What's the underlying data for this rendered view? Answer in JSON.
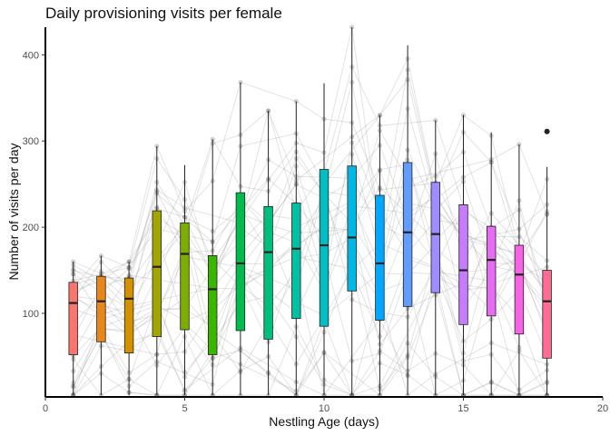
{
  "chart_data": {
    "type": "boxplot",
    "title": "Daily provisioning visits per female",
    "xlabel": "Nestling Age (days)",
    "ylabel": "Number of visits per day",
    "xlim": [
      0,
      20
    ],
    "ylim": [
      3,
      432
    ],
    "x_ticks": [
      0,
      5,
      10,
      15,
      20
    ],
    "y_ticks": [
      100,
      200,
      300,
      400
    ],
    "grid": false,
    "legend": "none",
    "boxes": [
      {
        "age": 1,
        "min": 5,
        "q1": 52,
        "median": 112,
        "q3": 136,
        "max": 160,
        "color": "#F8766D"
      },
      {
        "age": 2,
        "min": 5,
        "q1": 67,
        "median": 114,
        "q3": 143,
        "max": 167,
        "color": "#E8861A"
      },
      {
        "age": 3,
        "min": 5,
        "q1": 54,
        "median": 117,
        "q3": 141,
        "max": 160,
        "color": "#D39200"
      },
      {
        "age": 4,
        "min": 5,
        "q1": 73,
        "median": 154,
        "q3": 219,
        "max": 294,
        "color": "#A3A500"
      },
      {
        "age": 5,
        "min": 5,
        "q1": 81,
        "median": 169,
        "q3": 205,
        "max": 272,
        "color": "#7CAE00"
      },
      {
        "age": 6,
        "min": 5,
        "q1": 52,
        "median": 128,
        "q3": 167,
        "max": 302,
        "color": "#39B600"
      },
      {
        "age": 7,
        "min": 5,
        "q1": 80,
        "median": 158,
        "q3": 240,
        "max": 368,
        "color": "#00BB4E"
      },
      {
        "age": 8,
        "min": 5,
        "q1": 70,
        "median": 171,
        "q3": 224,
        "max": 335,
        "color": "#00BF7D"
      },
      {
        "age": 9,
        "min": 5,
        "q1": 94,
        "median": 175,
        "q3": 228,
        "max": 346,
        "color": "#00C1A3"
      },
      {
        "age": 10,
        "min": 5,
        "q1": 85,
        "median": 179,
        "q3": 267,
        "max": 367,
        "color": "#00BFC4"
      },
      {
        "age": 11,
        "min": 5,
        "q1": 126,
        "median": 188,
        "q3": 271,
        "max": 432,
        "color": "#00B8E7"
      },
      {
        "age": 12,
        "min": 5,
        "q1": 92,
        "median": 158,
        "q3": 237,
        "max": 330,
        "color": "#00A9FF"
      },
      {
        "age": 13,
        "min": 5,
        "q1": 108,
        "median": 194,
        "q3": 275,
        "max": 411,
        "color": "#619CFF"
      },
      {
        "age": 14,
        "min": 5,
        "q1": 124,
        "median": 192,
        "q3": 252,
        "max": 324,
        "color": "#9F8CFF"
      },
      {
        "age": 15,
        "min": 5,
        "q1": 87,
        "median": 150,
        "q3": 226,
        "max": 330,
        "color": "#C77CFF"
      },
      {
        "age": 16,
        "min": 5,
        "q1": 97,
        "median": 162,
        "q3": 201,
        "max": 310,
        "color": "#E76BF3"
      },
      {
        "age": 17,
        "min": 5,
        "q1": 76,
        "median": 145,
        "q3": 179,
        "max": 296,
        "color": "#F564E3"
      },
      {
        "age": 18,
        "min": 5,
        "q1": 48,
        "median": 114,
        "q3": 150,
        "max": 270,
        "color": "#FF6C91",
        "outliers": [
          311
        ]
      }
    ]
  }
}
